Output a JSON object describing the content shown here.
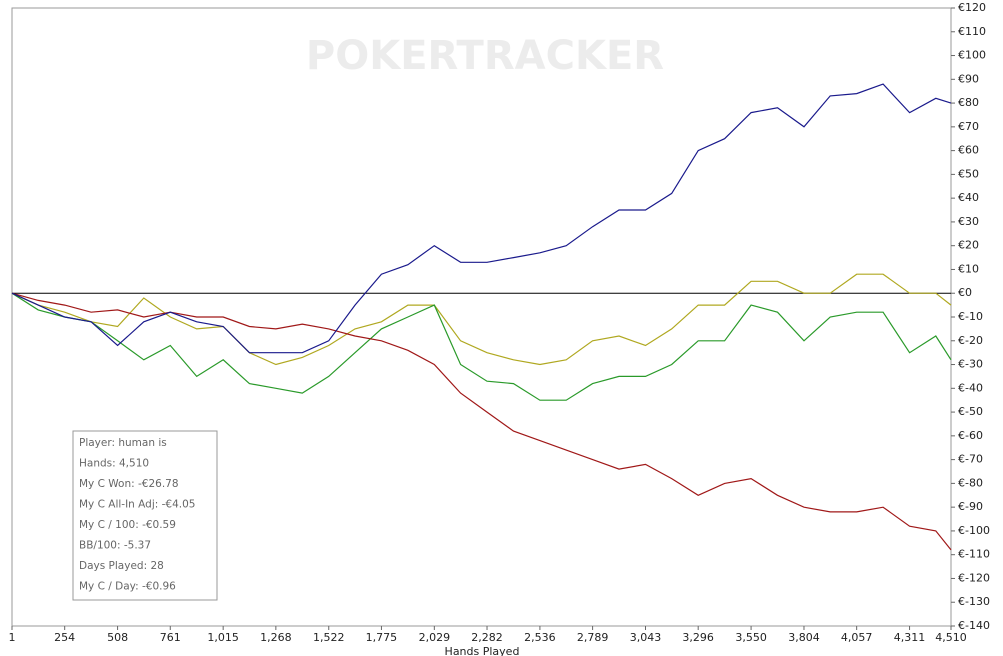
{
  "chart_data": {
    "type": "line",
    "watermark": "POKERTRACKER",
    "x_label": "Hands Played",
    "x": [
      1,
      127,
      254,
      381,
      508,
      634,
      761,
      888,
      1015,
      1141,
      1268,
      1395,
      1522,
      1648,
      1775,
      1902,
      2029,
      2155,
      2282,
      2409,
      2536,
      2662,
      2789,
      2916,
      3043,
      3169,
      3296,
      3423,
      3550,
      3677,
      3804,
      3930,
      4057,
      4184,
      4311,
      4437,
      4510
    ],
    "series": [
      {
        "color": "#b0a820",
        "values": [
          0,
          -5,
          -8,
          -12,
          -14,
          -2,
          -10,
          -15,
          -14,
          -25,
          -30,
          -27,
          -22,
          -15,
          -12,
          -5,
          -5,
          -20,
          -25,
          -28,
          -30,
          -28,
          -20,
          -18,
          -22,
          -15,
          -5,
          -5,
          5,
          5,
          0,
          0,
          8,
          8,
          0,
          0,
          -5
        ]
      },
      {
        "color": "#2a9a2a",
        "values": [
          0,
          -7,
          -10,
          -12,
          -20,
          -28,
          -22,
          -35,
          -28,
          -38,
          -40,
          -42,
          -35,
          -25,
          -15,
          -10,
          -5,
          -30,
          -37,
          -38,
          -45,
          -45,
          -38,
          -35,
          -35,
          -30,
          -20,
          -20,
          -5,
          -8,
          -20,
          -10,
          -8,
          -8,
          -25,
          -18,
          -28
        ]
      },
      {
        "color": "#a01818",
        "values": [
          0,
          -3,
          -5,
          -8,
          -7,
          -10,
          -8,
          -10,
          -10,
          -14,
          -15,
          -13,
          -15,
          -18,
          -20,
          -24,
          -30,
          -42,
          -50,
          -58,
          -62,
          -66,
          -70,
          -74,
          -72,
          -78,
          -85,
          -80,
          -78,
          -85,
          -90,
          -92,
          -92,
          -90,
          -98,
          -100,
          -108
        ]
      },
      {
        "color": "#1a1a8c",
        "values": [
          0,
          -5,
          -10,
          -12,
          -22,
          -12,
          -8,
          -12,
          -14,
          -25,
          -25,
          -25,
          -20,
          -5,
          8,
          12,
          20,
          13,
          13,
          15,
          17,
          20,
          28,
          35,
          35,
          42,
          60,
          65,
          76,
          78,
          70,
          83,
          84,
          88,
          76,
          82,
          80
        ]
      }
    ],
    "xlim": [
      1,
      4510
    ],
    "xticks": [
      1,
      254,
      508,
      761,
      {
        "value": 1015,
        "label": "1,015"
      },
      {
        "value": 1268,
        "label": "1,268"
      },
      {
        "value": 1522,
        "label": "1,522"
      },
      {
        "value": 1775,
        "label": "1,775"
      },
      {
        "value": 2029,
        "label": "2,029"
      },
      {
        "value": 2282,
        "label": "2,282"
      },
      {
        "value": 2536,
        "label": "2,536"
      },
      {
        "value": 2789,
        "label": "2,789"
      },
      {
        "value": 3043,
        "label": "3,043"
      },
      {
        "value": 3296,
        "label": "3,296"
      },
      {
        "value": 3550,
        "label": "3,550"
      },
      {
        "value": 3804,
        "label": "3,804"
      },
      {
        "value": 4057,
        "label": "4,057"
      },
      {
        "value": 4311,
        "label": "4,311"
      },
      {
        "value": 4510,
        "label": "4,510"
      }
    ],
    "ylim": [
      -140,
      120
    ],
    "yticks": [
      {
        "value": 120,
        "label": "€120"
      },
      {
        "value": 110,
        "label": "€110"
      },
      {
        "value": 100,
        "label": "€100"
      },
      {
        "value": 90,
        "label": "€90"
      },
      {
        "value": 80,
        "label": "€80"
      },
      {
        "value": 70,
        "label": "€70"
      },
      {
        "value": 60,
        "label": "€60"
      },
      {
        "value": 50,
        "label": "€50"
      },
      {
        "value": 40,
        "label": "€40"
      },
      {
        "value": 30,
        "label": "€30"
      },
      {
        "value": 20,
        "label": "€20"
      },
      {
        "value": 10,
        "label": "€10"
      },
      {
        "value": 0,
        "label": "€0"
      },
      {
        "value": -10,
        "label": "€-10"
      },
      {
        "value": -20,
        "label": "€-20"
      },
      {
        "value": -30,
        "label": "€-30"
      },
      {
        "value": -40,
        "label": "€-40"
      },
      {
        "value": -50,
        "label": "€-50"
      },
      {
        "value": -60,
        "label": "€-60"
      },
      {
        "value": -70,
        "label": "€-70"
      },
      {
        "value": -80,
        "label": "€-80"
      },
      {
        "value": -90,
        "label": "€-90"
      },
      {
        "value": -100,
        "label": "€-100"
      },
      {
        "value": -110,
        "label": "€-110"
      },
      {
        "value": -120,
        "label": "€-120"
      },
      {
        "value": -130,
        "label": "€-130"
      },
      {
        "value": -140,
        "label": "€-140"
      }
    ],
    "stats": [
      "Player: human is",
      "Hands: 4,510",
      "My C Won: -€26.78",
      "My C All-In Adj: -€4.05",
      "My C / 100: -€0.59",
      "BB/100: -5.37",
      "Days Played: 28",
      "My C / Day: -€0.96"
    ]
  }
}
